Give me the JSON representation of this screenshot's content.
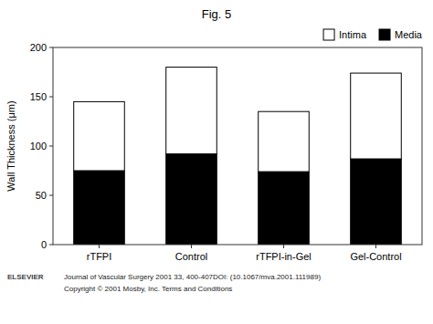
{
  "chart_data": {
    "type": "bar",
    "title": "Fig. 5",
    "y_label": "Wall Thickness (μm)",
    "categories": [
      "rTFPI",
      "Control",
      "rTFPI-in-Gel",
      "Gel-Control"
    ],
    "series": [
      {
        "name": "Media",
        "color": "#000000",
        "values": [
          75,
          92,
          74,
          87
        ]
      },
      {
        "name": "Intima",
        "color": "#ffffff",
        "values": [
          70,
          88,
          61,
          87
        ]
      }
    ],
    "stacked": true,
    "ylim": [
      0,
      200
    ],
    "yticks": [
      0,
      50,
      100,
      150,
      200
    ],
    "grid": false,
    "legend": "upper right",
    "annotations": [
      "Journal of Vascular Surgery 2001 33, 400-407DOI: (10.1067/mva.2001.111989)",
      "Copyright © 2001 Mosby, Inc.  Terms and Conditions",
      "ELSEVIER"
    ]
  }
}
